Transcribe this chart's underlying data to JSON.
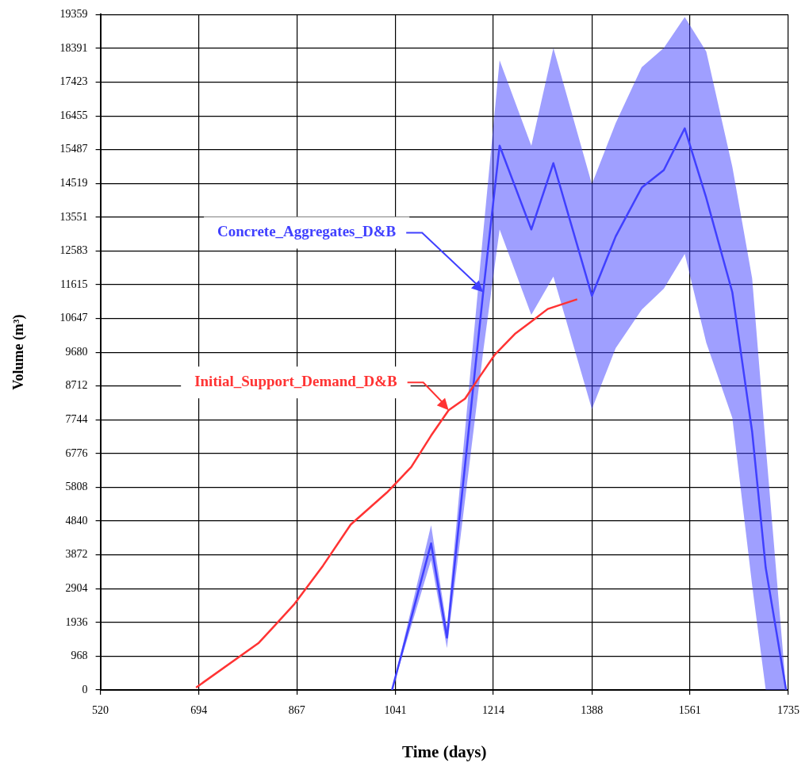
{
  "chart_data": {
    "type": "line",
    "xlabel": "Time (days)",
    "ylabel": "Volume (m³)",
    "xlim": [
      520,
      1735
    ],
    "xticks": [
      520,
      694,
      867,
      1041,
      1214,
      1388,
      1561,
      1735
    ],
    "ylim": [
      0,
      19359
    ],
    "yticks": [
      0,
      968,
      1936,
      2904,
      3872,
      4840,
      5808,
      6776,
      7744,
      8712,
      9680,
      10647,
      11615,
      12583,
      13551,
      14519,
      15487,
      16455,
      17423,
      18391,
      19359
    ],
    "grid": true,
    "legend": false,
    "marker": "none",
    "line_style": "solid",
    "series": [
      {
        "name": "Initial_Support_Demand_D&B",
        "color": "#ff3333",
        "x": [
          689,
          799,
          823,
          863,
          913,
          962,
          1026,
          1069,
          1104,
          1135,
          1164,
          1189,
          1217,
          1253,
          1281,
          1310,
          1362
        ],
        "values": [
          70,
          1340,
          1760,
          2470,
          3560,
          4740,
          5660,
          6390,
          7290,
          8020,
          8350,
          8960,
          9620,
          10220,
          10560,
          10920,
          11200
        ]
      },
      {
        "name": "Concrete_Aggregates_D&B",
        "color": "#4040ff",
        "x": [
          1035,
          1104,
          1132,
          1196,
          1225,
          1281,
          1320,
          1388,
          1430,
          1476,
          1515,
          1552,
          1590,
          1636,
          1671,
          1695,
          1731
        ],
        "values": [
          0,
          4200,
          1500,
          11400,
          15600,
          13200,
          15100,
          11300,
          13000,
          14400,
          14900,
          16100,
          14100,
          11400,
          7400,
          3500,
          0
        ],
        "lower": [
          0,
          3720,
          1200,
          9700,
          13200,
          10750,
          11850,
          8050,
          9800,
          10900,
          11500,
          12500,
          9950,
          7800,
          3000,
          0,
          0
        ],
        "upper": [
          0,
          4720,
          1800,
          13100,
          18050,
          15600,
          18400,
          14500,
          16250,
          17850,
          18400,
          19290,
          18300,
          15000,
          11800,
          7000,
          0
        ]
      }
    ]
  }
}
